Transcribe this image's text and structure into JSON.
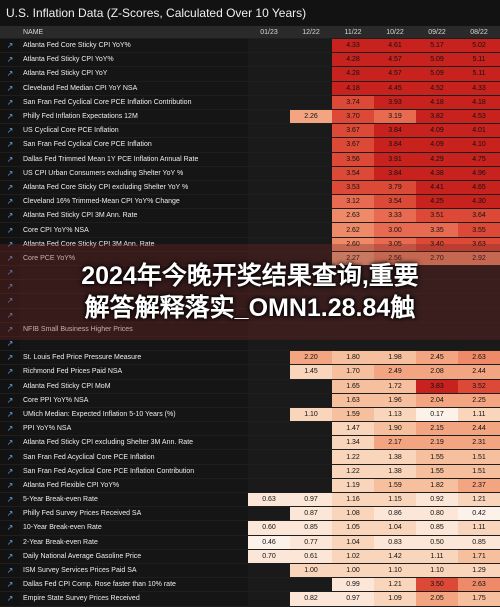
{
  "title": "U.S. Inflation Data (Z-Scores, Calculated Over 10 Years)",
  "columns": [
    "NAME",
    "01/23",
    "12/22",
    "11/22",
    "10/22",
    "09/22",
    "08/22"
  ],
  "banner": {
    "line1": "2024年今晚开奖结果查询,重要",
    "line2": "解答解释落实_OMN1.28.84触"
  },
  "rows": [
    {
      "name": "Atlanta Fed Core Sticky CPI YoY%",
      "v": [
        "",
        "",
        "4.33",
        "4.61",
        "5.17",
        "5.02"
      ]
    },
    {
      "name": "Atlanta Fed Sticky CPI YoY%",
      "v": [
        "",
        "",
        "4.28",
        "4.57",
        "5.09",
        "5.11"
      ]
    },
    {
      "name": "Atlanta Fed Sticky CPI YoY",
      "v": [
        "",
        "",
        "4.28",
        "4.57",
        "5.09",
        "5.11"
      ]
    },
    {
      "name": "Cleveland Fed Median CPI YoY NSA",
      "v": [
        "",
        "",
        "4.18",
        "4.45",
        "4.52",
        "4.33"
      ]
    },
    {
      "name": "San Fran Fed Cyclical Core PCE Inflation Contribution",
      "v": [
        "",
        "",
        "3.74",
        "3.93",
        "4.18",
        "4.18"
      ]
    },
    {
      "name": "Philly Fed Inflation Expectations 12M",
      "v": [
        "",
        "2.26",
        "3.70",
        "3.19",
        "3.82",
        "4.53"
      ]
    },
    {
      "name": "US Cyclical Core PCE Inflation",
      "v": [
        "",
        "",
        "3.67",
        "3.84",
        "4.09",
        "4.01"
      ]
    },
    {
      "name": "San Fran Fed Cyclical Core PCE Inflation",
      "v": [
        "",
        "",
        "3.67",
        "3.84",
        "4.09",
        "4.10"
      ]
    },
    {
      "name": "Dallas Fed Trimmed Mean 1Y PCE Inflation Annual Rate",
      "v": [
        "",
        "",
        "3.56",
        "3.91",
        "4.29",
        "4.75"
      ]
    },
    {
      "name": "US CPI Urban Consumers excluding Shelter YoY %",
      "v": [
        "",
        "",
        "3.54",
        "3.84",
        "4.38",
        "4.96"
      ]
    },
    {
      "name": "Atlanta Fed Core Sticky CPI excluding Shelter YoY %",
      "v": [
        "",
        "",
        "3.53",
        "3.79",
        "4.41",
        "4.65"
      ]
    },
    {
      "name": "Cleveland 16% Trimmed-Mean CPI YoY% Change",
      "v": [
        "",
        "",
        "3.12",
        "3.54",
        "4.25",
        "4.30"
      ]
    },
    {
      "name": "Atlanta Fed Sticky CPI 3M Ann. Rate",
      "v": [
        "",
        "",
        "2.63",
        "3.33",
        "3.51",
        "3.64"
      ]
    },
    {
      "name": "Core CPI YoY% NSA",
      "v": [
        "",
        "",
        "2.62",
        "3.00",
        "3.35",
        "3.55"
      ]
    },
    {
      "name": "Atlanta Fed Core Sticky CPI 3M Ann. Rate",
      "v": [
        "",
        "",
        "2.60",
        "3.05",
        "3.40",
        "3.63"
      ]
    },
    {
      "name": "Core PCE YoY%",
      "v": [
        "",
        "",
        "2.27",
        "2.56",
        "2.70",
        "2.92"
      ]
    },
    {
      "name": "",
      "v": [
        "",
        "",
        "",
        "",
        "",
        ""
      ]
    },
    {
      "name": "",
      "v": [
        "",
        "",
        "",
        "",
        "",
        ""
      ]
    },
    {
      "name": "",
      "v": [
        "",
        "",
        "",
        "",
        "",
        ""
      ]
    },
    {
      "name": "",
      "v": [
        "",
        "",
        "",
        "",
        "",
        ""
      ]
    },
    {
      "name": "NFIB Small Business Higher Prices",
      "v": [
        "",
        "",
        "",
        "",
        "",
        ""
      ]
    },
    {
      "name": "",
      "v": [
        "",
        "",
        "",
        "",
        "",
        ""
      ]
    },
    {
      "name": "St. Louis Fed Price Pressure Measure",
      "v": [
        "",
        "2.20",
        "1.80",
        "1.98",
        "2.45",
        "2.63"
      ]
    },
    {
      "name": "Richmond Fed Prices Paid NSA",
      "v": [
        "",
        "1.45",
        "1.70",
        "2.49",
        "2.08",
        "2.44"
      ]
    },
    {
      "name": "Atlanta Fed Sticky CPI MoM",
      "v": [
        "",
        "",
        "1.65",
        "1.72",
        "3.83",
        "3.52"
      ]
    },
    {
      "name": "Core PPI YoY% NSA",
      "v": [
        "",
        "",
        "1.63",
        "1.96",
        "2.04",
        "2.25"
      ]
    },
    {
      "name": "UMich Median: Expected Inflation 5-10 Years (%)",
      "v": [
        "",
        "1.10",
        "1.59",
        "1.13",
        "0.17",
        "1.11"
      ]
    },
    {
      "name": "PPI YoY% NSA",
      "v": [
        "",
        "",
        "1.47",
        "1.90",
        "2.15",
        "2.44"
      ]
    },
    {
      "name": "Atlanta Fed Sticky CPI excluding Shelter 3M Ann. Rate",
      "v": [
        "",
        "",
        "1.34",
        "2.17",
        "2.19",
        "2.31"
      ]
    },
    {
      "name": "San Fran Fed Acyclical Core PCE Inflation",
      "v": [
        "",
        "",
        "1.22",
        "1.38",
        "1.55",
        "1.51"
      ]
    },
    {
      "name": "San Fran Fed Acyclical Core PCE Inflation Contribution",
      "v": [
        "",
        "",
        "1.22",
        "1.38",
        "1.55",
        "1.51"
      ]
    },
    {
      "name": "Atlanta Fed Flexible CPI YoY%",
      "v": [
        "",
        "",
        "1.19",
        "1.59",
        "1.82",
        "2.37"
      ]
    },
    {
      "name": "5-Year Break-even Rate",
      "v": [
        "0.63",
        "0.97",
        "1.16",
        "1.15",
        "0.92",
        "1.21"
      ]
    },
    {
      "name": "Philly Fed Survey Prices Received SA",
      "v": [
        "",
        "0.87",
        "1.08",
        "0.86",
        "0.80",
        "0.42"
      ]
    },
    {
      "name": "10-Year Break-even Rate",
      "v": [
        "0.60",
        "0.85",
        "1.05",
        "1.04",
        "0.85",
        "1.11"
      ]
    },
    {
      "name": "2-Year Break-even Rate",
      "v": [
        "0.46",
        "0.77",
        "1.04",
        "0.83",
        "0.50",
        "0.85"
      ]
    },
    {
      "name": "Daily National Average Gasoline Price",
      "v": [
        "0.70",
        "0.61",
        "1.02",
        "1.42",
        "1.11",
        "1.71"
      ]
    },
    {
      "name": "ISM Survey Services Prices Paid SA",
      "v": [
        "",
        "1.00",
        "1.00",
        "1.10",
        "1.10",
        "1.29"
      ]
    },
    {
      "name": "Dallas Fed CPI Comp. Rose faster than 10% rate",
      "v": [
        "",
        "",
        "0.99",
        "1.21",
        "3.50",
        "2.63"
      ]
    },
    {
      "name": "Empire State Survey Prices Received",
      "v": [
        "",
        "0.82",
        "0.97",
        "1.09",
        "2.05",
        "1.75"
      ]
    }
  ]
}
